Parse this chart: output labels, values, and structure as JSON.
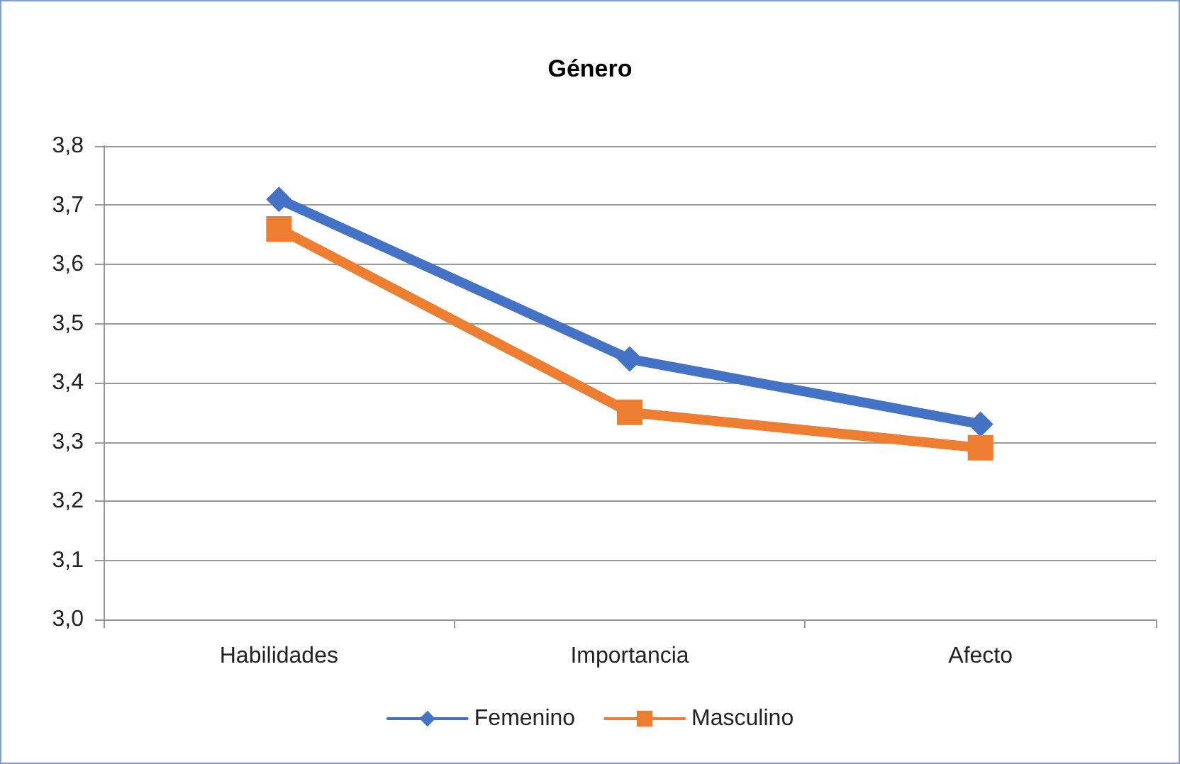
{
  "chart_data": {
    "type": "line",
    "title": "Género",
    "categories": [
      "Habilidades",
      "Importancia",
      "Afecto"
    ],
    "series": [
      {
        "name": "Femenino",
        "color": "#4472c4",
        "marker": "diamond",
        "values": [
          3.71,
          3.44,
          3.33
        ]
      },
      {
        "name": "Masculino",
        "color": "#ed7d31",
        "marker": "square",
        "values": [
          3.66,
          3.35,
          3.29
        ]
      }
    ],
    "ylim": [
      3.0,
      3.8
    ],
    "yticks": [
      {
        "value": 3.0,
        "label": "3,0"
      },
      {
        "value": 3.1,
        "label": "3,1"
      },
      {
        "value": 3.2,
        "label": "3,2"
      },
      {
        "value": 3.3,
        "label": "3,3"
      },
      {
        "value": 3.4,
        "label": "3,4"
      },
      {
        "value": 3.5,
        "label": "3,5"
      },
      {
        "value": 3.6,
        "label": "3,6"
      },
      {
        "value": 3.7,
        "label": "3,7"
      },
      {
        "value": 3.8,
        "label": "3,8"
      }
    ],
    "grid": "y",
    "legend": "bottom",
    "line_style": "solid"
  }
}
